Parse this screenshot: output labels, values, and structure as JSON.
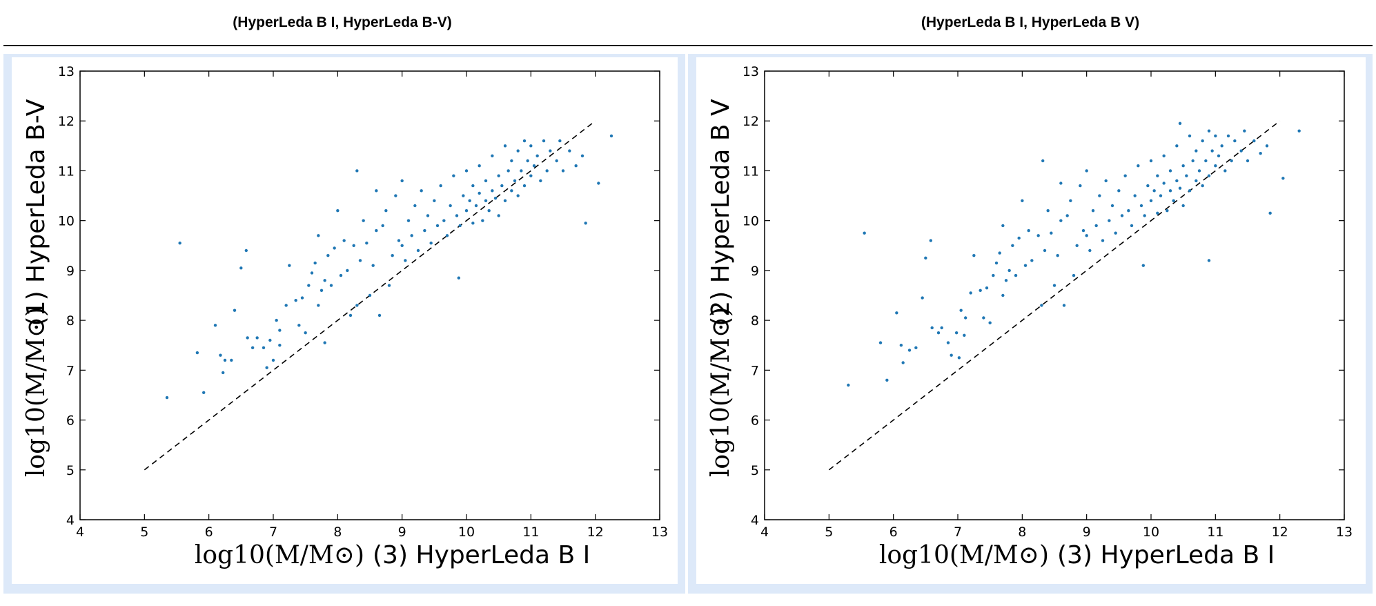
{
  "headers": {
    "left": "(HyperLeda B I, HyperLeda B-V)",
    "right": "(HyperLeda B I, HyperLeda B V)"
  },
  "colors": {
    "point": "#1f77b4",
    "panel_background": "#dde9f9",
    "reference_line": "#000000"
  },
  "chart_data": [
    {
      "type": "scatter",
      "xlabel": "log10(M/M⊙) (3) HyperLeda B I",
      "xlabel_math": "log10(M/M⊙)",
      "xlabel_text": "(3) HyperLeda B I",
      "ylabel": "log10(M/M⊙) (1) HyperLeda B-V",
      "ylabel_math": "log10(M/M⊙)",
      "ylabel_text": "(1) HyperLeda B-V",
      "xlim": [
        4,
        13
      ],
      "ylim": [
        4,
        13
      ],
      "xticks": [
        4,
        5,
        6,
        7,
        8,
        9,
        10,
        11,
        12,
        13
      ],
      "yticks": [
        4,
        5,
        6,
        7,
        8,
        9,
        10,
        11,
        12,
        13
      ],
      "grid": false,
      "reference_line": {
        "style": "dashed",
        "x": [
          5,
          12
        ],
        "y": [
          5,
          12
        ]
      },
      "series": [
        {
          "points": [
            [
              5.35,
              6.45
            ],
            [
              5.55,
              9.55
            ],
            [
              5.82,
              7.35
            ],
            [
              5.92,
              6.55
            ],
            [
              6.1,
              7.9
            ],
            [
              6.18,
              7.3
            ],
            [
              6.22,
              6.95
            ],
            [
              6.25,
              7.2
            ],
            [
              6.35,
              7.2
            ],
            [
              6.4,
              8.2
            ],
            [
              6.5,
              9.05
            ],
            [
              6.58,
              9.4
            ],
            [
              6.6,
              7.65
            ],
            [
              6.68,
              7.45
            ],
            [
              6.75,
              7.65
            ],
            [
              6.85,
              7.45
            ],
            [
              6.9,
              7.05
            ],
            [
              6.95,
              7.6
            ],
            [
              7.0,
              7.2
            ],
            [
              7.05,
              8.0
            ],
            [
              7.1,
              7.5
            ],
            [
              7.1,
              7.8
            ],
            [
              7.2,
              8.3
            ],
            [
              7.25,
              9.1
            ],
            [
              7.35,
              8.4
            ],
            [
              7.4,
              7.9
            ],
            [
              7.45,
              8.45
            ],
            [
              7.5,
              7.75
            ],
            [
              7.55,
              8.7
            ],
            [
              7.6,
              8.95
            ],
            [
              7.65,
              9.15
            ],
            [
              7.7,
              8.3
            ],
            [
              7.7,
              9.7
            ],
            [
              7.75,
              8.6
            ],
            [
              7.8,
              8.8
            ],
            [
              7.8,
              7.55
            ],
            [
              7.85,
              9.3
            ],
            [
              7.9,
              8.7
            ],
            [
              7.95,
              9.45
            ],
            [
              8.0,
              10.2
            ],
            [
              8.05,
              8.9
            ],
            [
              8.1,
              9.6
            ],
            [
              8.15,
              9.0
            ],
            [
              8.2,
              8.1
            ],
            [
              8.25,
              9.5
            ],
            [
              8.3,
              8.3
            ],
            [
              8.3,
              11.0
            ],
            [
              8.35,
              9.2
            ],
            [
              8.4,
              10.0
            ],
            [
              8.45,
              9.55
            ],
            [
              8.5,
              8.5
            ],
            [
              8.55,
              9.1
            ],
            [
              8.6,
              10.6
            ],
            [
              8.6,
              9.8
            ],
            [
              8.65,
              8.1
            ],
            [
              8.7,
              9.9
            ],
            [
              8.75,
              10.2
            ],
            [
              8.8,
              8.7
            ],
            [
              8.85,
              9.3
            ],
            [
              8.9,
              10.5
            ],
            [
              8.95,
              9.6
            ],
            [
              9.0,
              10.8
            ],
            [
              9.0,
              9.5
            ],
            [
              9.05,
              9.2
            ],
            [
              9.1,
              10.0
            ],
            [
              9.15,
              9.7
            ],
            [
              9.2,
              10.3
            ],
            [
              9.25,
              9.4
            ],
            [
              9.3,
              10.6
            ],
            [
              9.35,
              9.8
            ],
            [
              9.4,
              10.1
            ],
            [
              9.45,
              9.55
            ],
            [
              9.5,
              10.4
            ],
            [
              9.55,
              9.9
            ],
            [
              9.6,
              10.7
            ],
            [
              9.65,
              10.0
            ],
            [
              9.7,
              9.7
            ],
            [
              9.75,
              10.3
            ],
            [
              9.8,
              10.9
            ],
            [
              9.85,
              10.1
            ],
            [
              9.88,
              8.85
            ],
            [
              9.9,
              9.9
            ],
            [
              9.95,
              10.5
            ],
            [
              10.0,
              10.2
            ],
            [
              10.0,
              11.0
            ],
            [
              10.05,
              10.4
            ],
            [
              10.1,
              9.95
            ],
            [
              10.1,
              10.7
            ],
            [
              10.15,
              10.3
            ],
            [
              10.2,
              10.55
            ],
            [
              10.2,
              11.1
            ],
            [
              10.25,
              10.0
            ],
            [
              10.3,
              10.4
            ],
            [
              10.3,
              10.8
            ],
            [
              10.35,
              10.2
            ],
            [
              10.4,
              10.6
            ],
            [
              10.4,
              11.3
            ],
            [
              10.45,
              10.45
            ],
            [
              10.5,
              10.9
            ],
            [
              10.5,
              10.1
            ],
            [
              10.55,
              10.7
            ],
            [
              10.6,
              11.5
            ],
            [
              10.6,
              10.4
            ],
            [
              10.65,
              11.0
            ],
            [
              10.7,
              10.6
            ],
            [
              10.7,
              11.2
            ],
            [
              10.75,
              10.8
            ],
            [
              10.8,
              11.4
            ],
            [
              10.8,
              10.5
            ],
            [
              10.85,
              11.0
            ],
            [
              10.9,
              11.6
            ],
            [
              10.9,
              10.7
            ],
            [
              10.95,
              11.2
            ],
            [
              11.0,
              10.9
            ],
            [
              11.0,
              11.5
            ],
            [
              11.05,
              11.1
            ],
            [
              11.1,
              11.3
            ],
            [
              11.15,
              10.8
            ],
            [
              11.2,
              11.6
            ],
            [
              11.25,
              11.0
            ],
            [
              11.3,
              11.4
            ],
            [
              11.4,
              11.2
            ],
            [
              11.45,
              11.6
            ],
            [
              11.5,
              11.0
            ],
            [
              11.6,
              11.4
            ],
            [
              11.7,
              11.1
            ],
            [
              11.8,
              11.3
            ],
            [
              11.85,
              9.95
            ],
            [
              12.05,
              10.75
            ],
            [
              12.25,
              11.7
            ]
          ]
        }
      ]
    },
    {
      "type": "scatter",
      "xlabel": "log10(M/M⊙) (3) HyperLeda B I",
      "xlabel_math": "log10(M/M⊙)",
      "xlabel_text": "(3) HyperLeda B I",
      "ylabel": "log10(M/M⊙) (2) HyperLeda B V",
      "ylabel_math": "log10(M/M⊙)",
      "ylabel_text": "(2) HyperLeda B V",
      "xlim": [
        4,
        13
      ],
      "ylim": [
        4,
        13
      ],
      "xticks": [
        4,
        5,
        6,
        7,
        8,
        9,
        10,
        11,
        12,
        13
      ],
      "yticks": [
        4,
        5,
        6,
        7,
        8,
        9,
        10,
        11,
        12,
        13
      ],
      "grid": false,
      "reference_line": {
        "style": "dashed",
        "x": [
          5,
          12
        ],
        "y": [
          5,
          12
        ]
      },
      "series": [
        {
          "points": [
            [
              5.3,
              6.7
            ],
            [
              5.55,
              9.75
            ],
            [
              5.8,
              7.55
            ],
            [
              5.9,
              6.8
            ],
            [
              6.05,
              8.15
            ],
            [
              6.12,
              7.5
            ],
            [
              6.15,
              7.15
            ],
            [
              6.25,
              7.4
            ],
            [
              6.35,
              7.45
            ],
            [
              6.45,
              8.45
            ],
            [
              6.5,
              9.25
            ],
            [
              6.58,
              9.6
            ],
            [
              6.6,
              7.85
            ],
            [
              6.7,
              7.75
            ],
            [
              6.75,
              7.85
            ],
            [
              6.85,
              7.55
            ],
            [
              6.9,
              7.3
            ],
            [
              6.98,
              7.75
            ],
            [
              7.02,
              7.25
            ],
            [
              7.05,
              8.2
            ],
            [
              7.1,
              7.7
            ],
            [
              7.12,
              8.05
            ],
            [
              7.2,
              8.55
            ],
            [
              7.25,
              9.3
            ],
            [
              7.35,
              8.6
            ],
            [
              7.4,
              8.05
            ],
            [
              7.45,
              8.65
            ],
            [
              7.5,
              7.95
            ],
            [
              7.55,
              8.9
            ],
            [
              7.6,
              9.15
            ],
            [
              7.65,
              9.35
            ],
            [
              7.7,
              8.5
            ],
            [
              7.7,
              9.9
            ],
            [
              7.75,
              8.8
            ],
            [
              7.8,
              9.0
            ],
            [
              7.85,
              9.5
            ],
            [
              7.9,
              8.9
            ],
            [
              7.95,
              9.65
            ],
            [
              8.0,
              10.4
            ],
            [
              8.05,
              9.1
            ],
            [
              8.1,
              9.8
            ],
            [
              8.15,
              9.2
            ],
            [
              8.25,
              9.7
            ],
            [
              8.3,
              8.3
            ],
            [
              8.32,
              11.2
            ],
            [
              8.35,
              9.4
            ],
            [
              8.4,
              10.2
            ],
            [
              8.45,
              9.75
            ],
            [
              8.5,
              8.7
            ],
            [
              8.55,
              9.3
            ],
            [
              8.6,
              10.75
            ],
            [
              8.6,
              10.0
            ],
            [
              8.65,
              8.3
            ],
            [
              8.7,
              10.1
            ],
            [
              8.75,
              10.4
            ],
            [
              8.8,
              8.9
            ],
            [
              8.85,
              9.5
            ],
            [
              8.9,
              10.7
            ],
            [
              8.95,
              9.8
            ],
            [
              9.0,
              11.0
            ],
            [
              9.0,
              9.7
            ],
            [
              9.05,
              9.4
            ],
            [
              9.1,
              10.2
            ],
            [
              9.15,
              9.9
            ],
            [
              9.2,
              10.5
            ],
            [
              9.25,
              9.6
            ],
            [
              9.3,
              10.8
            ],
            [
              9.35,
              10.0
            ],
            [
              9.4,
              10.3
            ],
            [
              9.45,
              9.75
            ],
            [
              9.5,
              10.6
            ],
            [
              9.55,
              10.1
            ],
            [
              9.6,
              10.9
            ],
            [
              9.65,
              10.2
            ],
            [
              9.7,
              9.9
            ],
            [
              9.75,
              10.5
            ],
            [
              9.8,
              11.1
            ],
            [
              9.85,
              10.3
            ],
            [
              9.88,
              9.1
            ],
            [
              9.9,
              10.1
            ],
            [
              9.95,
              10.7
            ],
            [
              10.0,
              10.4
            ],
            [
              10.0,
              11.2
            ],
            [
              10.05,
              10.6
            ],
            [
              10.1,
              10.15
            ],
            [
              10.1,
              10.9
            ],
            [
              10.15,
              10.5
            ],
            [
              10.2,
              10.75
            ],
            [
              10.2,
              11.3
            ],
            [
              10.25,
              10.2
            ],
            [
              10.3,
              10.6
            ],
            [
              10.3,
              11.0
            ],
            [
              10.35,
              10.4
            ],
            [
              10.4,
              10.8
            ],
            [
              10.4,
              11.5
            ],
            [
              10.45,
              10.65
            ],
            [
              10.5,
              11.1
            ],
            [
              10.5,
              10.3
            ],
            [
              10.55,
              10.9
            ],
            [
              10.6,
              11.7
            ],
            [
              10.6,
              10.6
            ],
            [
              10.65,
              11.2
            ],
            [
              10.7,
              10.8
            ],
            [
              10.7,
              11.4
            ],
            [
              10.75,
              11.0
            ],
            [
              10.8,
              11.6
            ],
            [
              10.8,
              10.7
            ],
            [
              10.85,
              11.2
            ],
            [
              10.9,
              11.8
            ],
            [
              10.9,
              10.9
            ],
            [
              10.95,
              11.4
            ],
            [
              11.0,
              11.1
            ],
            [
              11.0,
              11.7
            ],
            [
              11.05,
              11.3
            ],
            [
              11.1,
              11.5
            ],
            [
              11.15,
              11.0
            ],
            [
              11.2,
              11.7
            ],
            [
              11.25,
              11.2
            ],
            [
              11.3,
              11.6
            ],
            [
              11.4,
              11.4
            ],
            [
              11.45,
              11.8
            ],
            [
              11.5,
              11.2
            ],
            [
              11.6,
              11.6
            ],
            [
              11.7,
              11.35
            ],
            [
              11.8,
              11.5
            ],
            [
              11.85,
              10.15
            ],
            [
              12.05,
              10.85
            ],
            [
              12.3,
              11.8
            ],
            [
              10.45,
              11.95
            ],
            [
              10.9,
              9.2
            ]
          ]
        }
      ]
    }
  ]
}
